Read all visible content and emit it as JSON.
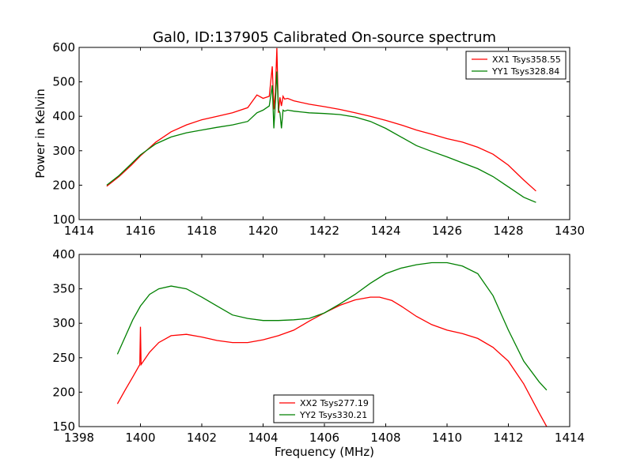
{
  "figure": {
    "title": "Gal0, ID:137905 Calibrated On-source spectrum"
  },
  "colors": {
    "red": "#ff0000",
    "green": "#008000",
    "axis": "#000000",
    "background": "#ffffff"
  },
  "chart_data": [
    {
      "type": "line",
      "title": "Gal0, ID:137905 Calibrated On-source spectrum",
      "xlabel": "",
      "ylabel": "Power in Kelvin",
      "xlim": [
        1414,
        1430
      ],
      "ylim": [
        100,
        600
      ],
      "xticks": [
        1414,
        1416,
        1418,
        1420,
        1422,
        1424,
        1426,
        1428,
        1430
      ],
      "yticks": [
        100,
        200,
        300,
        400,
        500,
        600
      ],
      "grid": false,
      "legend_position": "top-right",
      "series": [
        {
          "name": "XX1 Tsys358.55",
          "color": "#ff0000",
          "x": [
            1414.9,
            1415.3,
            1415.7,
            1416.0,
            1416.5,
            1417.0,
            1417.5,
            1418.0,
            1418.5,
            1419.0,
            1419.5,
            1419.8,
            1420.0,
            1420.2,
            1420.3,
            1420.35,
            1420.4,
            1420.45,
            1420.5,
            1420.55,
            1420.6,
            1420.65,
            1420.7,
            1420.8,
            1421.0,
            1421.5,
            1422.0,
            1422.5,
            1423.0,
            1423.5,
            1424.0,
            1424.5,
            1425.0,
            1425.5,
            1426.0,
            1426.5,
            1427.0,
            1427.5,
            1428.0,
            1428.5,
            1428.9
          ],
          "y": [
            197,
            225,
            258,
            285,
            325,
            355,
            375,
            390,
            400,
            410,
            425,
            462,
            452,
            458,
            545,
            420,
            470,
            598,
            410,
            455,
            430,
            458,
            450,
            452,
            445,
            435,
            428,
            420,
            410,
            400,
            388,
            375,
            360,
            348,
            335,
            325,
            310,
            290,
            258,
            215,
            183
          ]
        },
        {
          "name": "YY1 Tsys328.84",
          "color": "#008000",
          "x": [
            1414.9,
            1415.3,
            1415.7,
            1416.0,
            1416.5,
            1417.0,
            1417.5,
            1418.0,
            1418.5,
            1419.0,
            1419.5,
            1419.8,
            1420.0,
            1420.2,
            1420.3,
            1420.35,
            1420.4,
            1420.45,
            1420.5,
            1420.55,
            1420.6,
            1420.65,
            1420.7,
            1420.8,
            1421.0,
            1421.5,
            1422.0,
            1422.5,
            1423.0,
            1423.5,
            1424.0,
            1424.5,
            1425.0,
            1425.5,
            1426.0,
            1426.5,
            1427.0,
            1427.5,
            1428.0,
            1428.5,
            1428.9
          ],
          "y": [
            200,
            228,
            262,
            288,
            320,
            340,
            352,
            360,
            368,
            375,
            385,
            410,
            418,
            430,
            490,
            365,
            440,
            530,
            420,
            410,
            365,
            418,
            415,
            418,
            415,
            410,
            408,
            405,
            398,
            385,
            365,
            340,
            315,
            298,
            282,
            265,
            248,
            225,
            195,
            165,
            150
          ]
        }
      ]
    },
    {
      "type": "line",
      "title": "",
      "xlabel": "Frequency (MHz)",
      "ylabel": "",
      "xlim": [
        1398,
        1414
      ],
      "ylim": [
        150,
        400
      ],
      "xticks": [
        1398,
        1400,
        1402,
        1404,
        1406,
        1408,
        1410,
        1412,
        1414
      ],
      "yticks": [
        150,
        200,
        250,
        300,
        350,
        400
      ],
      "grid": false,
      "legend_position": "bottom-center",
      "series": [
        {
          "name": "XX2 Tsys277.19",
          "color": "#ff0000",
          "x": [
            1399.25,
            1399.5,
            1399.75,
            1399.98,
            1400.0,
            1400.02,
            1400.3,
            1400.6,
            1401.0,
            1401.5,
            1402.0,
            1402.5,
            1403.0,
            1403.5,
            1404.0,
            1404.5,
            1405.0,
            1405.5,
            1406.0,
            1406.5,
            1407.0,
            1407.5,
            1407.8,
            1408.2,
            1408.5,
            1409.0,
            1409.5,
            1410.0,
            1410.5,
            1411.0,
            1411.5,
            1412.0,
            1412.5,
            1413.0,
            1413.25
          ],
          "y": [
            183,
            203,
            222,
            240,
            295,
            240,
            258,
            272,
            282,
            284,
            280,
            275,
            272,
            272,
            276,
            282,
            290,
            303,
            315,
            326,
            334,
            338,
            338,
            333,
            325,
            310,
            298,
            290,
            285,
            278,
            265,
            245,
            212,
            170,
            150
          ]
        },
        {
          "name": "YY2 Tsys330.21",
          "color": "#008000",
          "x": [
            1399.25,
            1399.5,
            1399.75,
            1400.0,
            1400.3,
            1400.6,
            1401.0,
            1401.5,
            1402.0,
            1402.5,
            1403.0,
            1403.5,
            1404.0,
            1404.5,
            1405.0,
            1405.5,
            1406.0,
            1406.5,
            1407.0,
            1407.5,
            1408.0,
            1408.5,
            1409.0,
            1409.5,
            1410.0,
            1410.5,
            1411.0,
            1411.5,
            1412.0,
            1412.5,
            1413.0,
            1413.25
          ],
          "y": [
            255,
            280,
            305,
            325,
            342,
            350,
            354,
            350,
            338,
            325,
            312,
            307,
            304,
            304,
            305,
            307,
            315,
            328,
            342,
            358,
            372,
            380,
            385,
            388,
            388,
            383,
            372,
            340,
            290,
            245,
            215,
            203
          ]
        }
      ]
    }
  ]
}
